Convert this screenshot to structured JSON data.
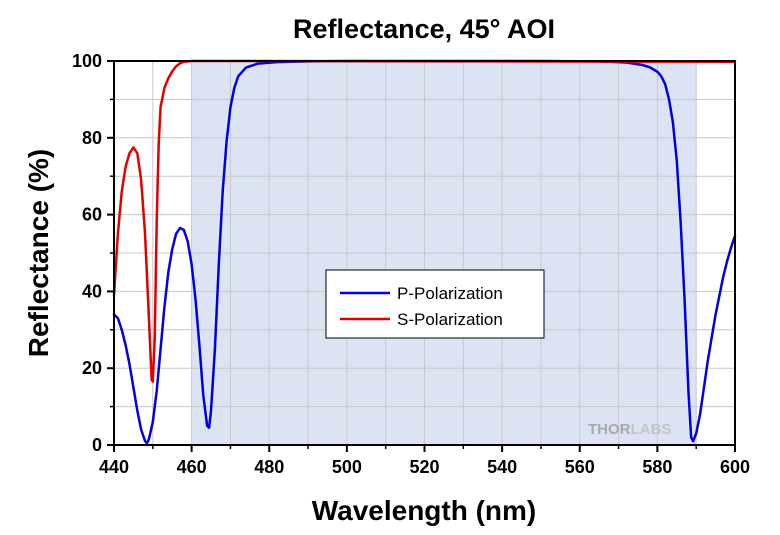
{
  "chart_data": {
    "type": "line",
    "title": "Reflectance, 45° AOI",
    "xlabel": "Wavelength (nm)",
    "ylabel": "Reflectance (%)",
    "xlim": [
      440,
      600
    ],
    "ylim": [
      0,
      100
    ],
    "xticks": [
      "440",
      "460",
      "480",
      "500",
      "520",
      "540",
      "560",
      "580",
      "600"
    ],
    "yticks": [
      "0",
      "20",
      "40",
      "60",
      "80",
      "100"
    ],
    "grid": true,
    "highlight_band": {
      "x_start": 460,
      "x_end": 590,
      "color": "#dce4f3"
    },
    "legend": {
      "position": "center"
    },
    "series": [
      {
        "name": "P-Polarization",
        "color": "#0000e0",
        "points": [
          [
            440,
            34
          ],
          [
            441,
            33
          ],
          [
            442,
            30
          ],
          [
            443,
            26
          ],
          [
            444,
            21
          ],
          [
            445,
            15
          ],
          [
            446,
            9
          ],
          [
            447,
            4
          ],
          [
            448,
            1
          ],
          [
            448.5,
            0.5
          ],
          [
            449,
            1.5
          ],
          [
            450,
            6
          ],
          [
            451,
            14
          ],
          [
            452,
            25
          ],
          [
            453,
            36
          ],
          [
            454,
            45
          ],
          [
            455,
            51
          ],
          [
            456,
            55
          ],
          [
            457,
            56.5
          ],
          [
            458,
            56
          ],
          [
            459,
            53
          ],
          [
            460,
            47
          ],
          [
            461,
            38
          ],
          [
            462,
            26
          ],
          [
            463,
            13
          ],
          [
            464,
            5
          ],
          [
            464.5,
            4.5
          ],
          [
            465,
            9
          ],
          [
            466,
            25
          ],
          [
            467,
            47
          ],
          [
            468,
            66
          ],
          [
            469,
            79
          ],
          [
            470,
            88
          ],
          [
            471,
            93
          ],
          [
            472,
            96
          ],
          [
            474,
            98.3
          ],
          [
            477,
            99.3
          ],
          [
            482,
            99.7
          ],
          [
            490,
            99.9
          ],
          [
            500,
            100
          ],
          [
            550,
            100
          ],
          [
            565,
            99.9
          ],
          [
            572,
            99.6
          ],
          [
            576,
            99
          ],
          [
            578,
            98.4
          ],
          [
            580,
            97.2
          ],
          [
            581,
            96
          ],
          [
            582,
            94
          ],
          [
            583,
            90
          ],
          [
            584,
            84
          ],
          [
            585,
            74
          ],
          [
            586,
            58
          ],
          [
            587,
            38
          ],
          [
            588,
            14
          ],
          [
            588.7,
            2
          ],
          [
            589.2,
            1
          ],
          [
            590,
            3
          ],
          [
            591,
            8
          ],
          [
            592,
            15
          ],
          [
            593,
            22
          ],
          [
            594,
            28
          ],
          [
            595,
            34
          ],
          [
            596,
            39
          ],
          [
            597,
            44
          ],
          [
            598,
            48
          ],
          [
            599,
            51.5
          ],
          [
            600,
            54.5
          ]
        ]
      },
      {
        "name": "S-Polarization",
        "color": "#e00000",
        "points": [
          [
            440,
            39
          ],
          [
            441,
            55
          ],
          [
            442,
            66
          ],
          [
            443,
            72.5
          ],
          [
            444,
            76
          ],
          [
            445,
            77.5
          ],
          [
            446,
            76
          ],
          [
            447,
            69
          ],
          [
            448,
            55
          ],
          [
            449,
            33
          ],
          [
            449.7,
            17
          ],
          [
            450,
            16.5
          ],
          [
            450.5,
            28
          ],
          [
            451,
            58
          ],
          [
            451.5,
            78
          ],
          [
            452,
            88
          ],
          [
            453,
            93
          ],
          [
            454,
            95.5
          ],
          [
            455,
            97.3
          ],
          [
            456,
            98.6
          ],
          [
            457,
            99.4
          ],
          [
            458,
            99.8
          ],
          [
            460,
            100
          ],
          [
            470,
            100
          ],
          [
            600,
            99.8
          ]
        ]
      }
    ]
  },
  "watermark": {
    "text_gray": "THOR",
    "text_light": "LABS"
  }
}
